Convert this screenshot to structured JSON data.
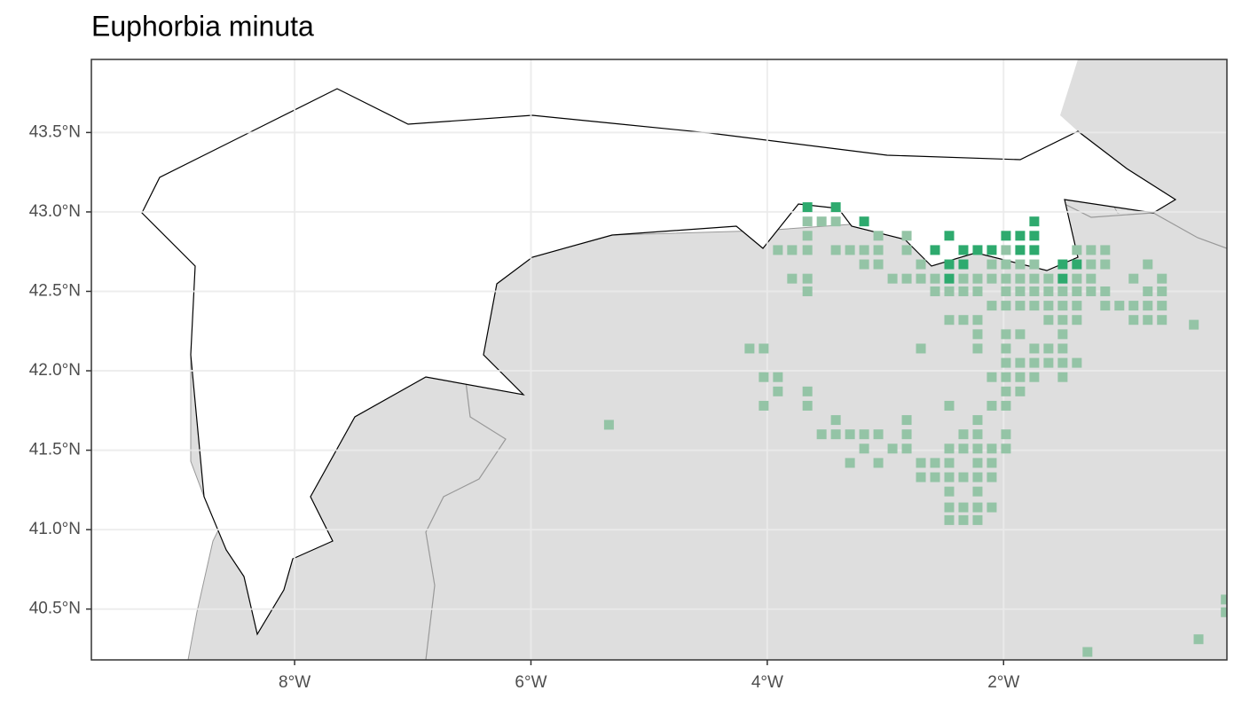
{
  "chart_data": {
    "type": "scatter",
    "title": "Euphorbia minuta",
    "xlim": [
      -9.72,
      -0.11
    ],
    "ylim": [
      40.18,
      43.96
    ],
    "grid": true,
    "xticks": [
      {
        "value": -8,
        "label": "8°W"
      },
      {
        "value": -6,
        "label": "6°W"
      },
      {
        "value": -4,
        "label": "4°W"
      },
      {
        "value": -2,
        "label": "2°W"
      }
    ],
    "yticks": [
      {
        "value": 40.5,
        "label": "40.5°N"
      },
      {
        "value": 41.0,
        "label": "41.0°N"
      },
      {
        "value": 41.5,
        "label": "41.5°N"
      },
      {
        "value": 42.0,
        "label": "42.0°N"
      },
      {
        "value": 42.5,
        "label": "42.5°N"
      },
      {
        "value": 43.0,
        "label": "43.0°N"
      },
      {
        "value": 43.5,
        "label": "43.5°N"
      }
    ],
    "series": [
      {
        "color": "#94c4a6",
        "x": [
          -3.66,
          -3.54,
          -3.42,
          -3.66,
          -3.06,
          -2.82,
          -3.91,
          -3.79,
          -3.66,
          -3.42,
          -3.3,
          -3.18,
          -3.06,
          -2.82,
          -1.98,
          -1.38,
          -1.26,
          -1.14,
          -3.18,
          -3.06,
          -2.7,
          -2.1,
          -1.98,
          -1.86,
          -1.74,
          -1.26,
          -1.14,
          -0.78,
          -3.79,
          -3.66,
          -2.94,
          -2.82,
          -2.7,
          -2.58,
          -2.34,
          -2.22,
          -2.1,
          -1.98,
          -1.86,
          -1.74,
          -1.62,
          -1.38,
          -1.26,
          -0.9,
          -0.66,
          -3.66,
          -2.58,
          -2.46,
          -2.34,
          -2.22,
          -1.98,
          -1.86,
          -1.74,
          -1.62,
          -1.5,
          -1.38,
          -1.26,
          -1.14,
          -0.78,
          -0.66,
          -2.1,
          -1.98,
          -1.86,
          -1.74,
          -1.62,
          -1.5,
          -1.38,
          -1.14,
          -1.02,
          -0.9,
          -0.78,
          -0.66,
          -2.46,
          -2.34,
          -2.22,
          -1.62,
          -1.5,
          -1.38,
          -0.9,
          -0.78,
          -0.66,
          -0.39,
          -2.22,
          -1.98,
          -1.86,
          -1.5,
          -4.15,
          -4.03,
          -2.7,
          -2.22,
          -1.98,
          -1.74,
          -1.62,
          -1.5,
          -1.98,
          -1.86,
          -1.74,
          -1.62,
          -1.5,
          -1.38,
          -4.03,
          -3.91,
          -2.1,
          -1.98,
          -1.86,
          -1.74,
          -1.5,
          -3.91,
          -3.66,
          -1.98,
          -1.86,
          -4.03,
          -3.66,
          -2.46,
          -2.1,
          -1.98,
          -3.42,
          -2.82,
          -2.22,
          -5.34,
          -3.54,
          -3.42,
          -3.3,
          -3.18,
          -3.06,
          -2.82,
          -2.34,
          -2.22,
          -1.98,
          -3.18,
          -2.94,
          -2.82,
          -2.46,
          -2.34,
          -2.22,
          -2.1,
          -1.98,
          -3.3,
          -3.06,
          -2.7,
          -2.58,
          -2.46,
          -2.22,
          -2.1,
          -2.7,
          -2.58,
          -2.46,
          -2.34,
          -2.22,
          -2.1,
          -2.46,
          -2.22,
          -2.46,
          -2.34,
          -2.22,
          -2.1,
          -2.46,
          -2.34,
          -2.22,
          -0.12,
          -0.12,
          -0.35,
          -1.29
        ],
        "values": [
          42.94,
          42.94,
          42.94,
          42.85,
          42.85,
          42.85,
          42.76,
          42.76,
          42.76,
          42.76,
          42.76,
          42.76,
          42.76,
          42.76,
          42.76,
          42.76,
          42.76,
          42.76,
          42.67,
          42.67,
          42.67,
          42.67,
          42.67,
          42.67,
          42.67,
          42.67,
          42.67,
          42.67,
          42.58,
          42.58,
          42.58,
          42.58,
          42.58,
          42.58,
          42.58,
          42.58,
          42.58,
          42.58,
          42.58,
          42.58,
          42.58,
          42.58,
          42.58,
          42.58,
          42.58,
          42.5,
          42.5,
          42.5,
          42.5,
          42.5,
          42.5,
          42.5,
          42.5,
          42.5,
          42.5,
          42.5,
          42.5,
          42.5,
          42.5,
          42.5,
          42.41,
          42.41,
          42.41,
          42.41,
          42.41,
          42.41,
          42.41,
          42.41,
          42.41,
          42.41,
          42.41,
          42.41,
          42.32,
          42.32,
          42.32,
          42.32,
          42.32,
          42.32,
          42.32,
          42.32,
          42.32,
          42.29,
          42.23,
          42.23,
          42.23,
          42.23,
          42.14,
          42.14,
          42.14,
          42.14,
          42.14,
          42.14,
          42.14,
          42.14,
          42.05,
          42.05,
          42.05,
          42.05,
          42.05,
          42.05,
          41.96,
          41.96,
          41.96,
          41.96,
          41.96,
          41.96,
          41.96,
          41.87,
          41.87,
          41.87,
          41.87,
          41.78,
          41.78,
          41.78,
          41.78,
          41.78,
          41.69,
          41.69,
          41.69,
          41.66,
          41.6,
          41.6,
          41.6,
          41.6,
          41.6,
          41.6,
          41.6,
          41.6,
          41.6,
          41.51,
          41.51,
          41.51,
          41.51,
          41.51,
          41.51,
          41.51,
          41.51,
          41.42,
          41.42,
          41.42,
          41.42,
          41.42,
          41.42,
          41.42,
          41.33,
          41.33,
          41.33,
          41.33,
          41.33,
          41.33,
          41.24,
          41.24,
          41.14,
          41.14,
          41.14,
          41.14,
          41.06,
          41.06,
          41.06,
          40.56,
          40.48,
          40.31,
          40.23
        ]
      },
      {
        "color": "#2eaa6e",
        "x": [
          -3.66,
          -3.42,
          -3.18,
          -2.46,
          -1.98,
          -1.86,
          -1.74,
          -1.74,
          -2.58,
          -2.34,
          -2.22,
          -2.1,
          -1.86,
          -1.74,
          -2.46,
          -2.34,
          -1.5,
          -1.38,
          -2.46,
          -1.5
        ],
        "values": [
          43.03,
          43.03,
          42.94,
          42.85,
          42.85,
          42.85,
          42.85,
          42.94,
          42.76,
          42.76,
          42.76,
          42.76,
          42.76,
          42.76,
          42.67,
          42.67,
          42.67,
          42.67,
          42.58,
          42.58
        ]
      }
    ]
  }
}
